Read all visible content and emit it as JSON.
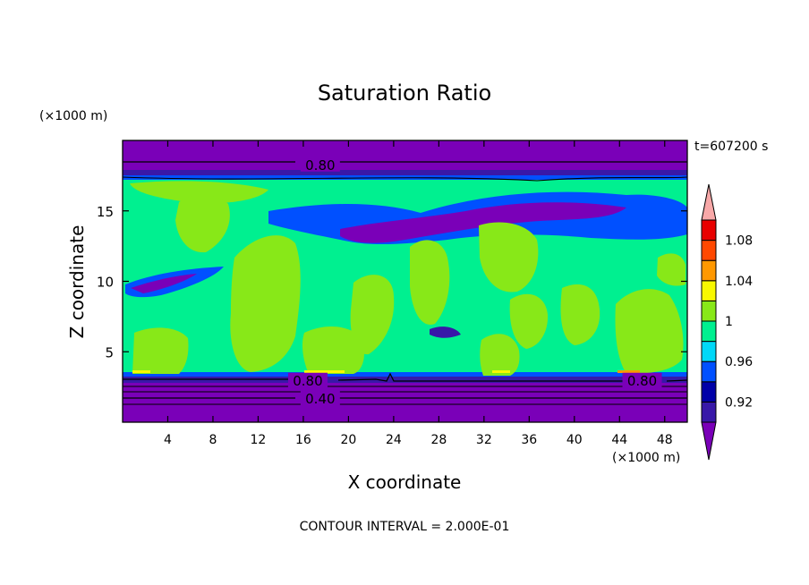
{
  "chart_data": {
    "type": "heatmap",
    "title": "Saturation Ratio",
    "xlabel": "X coordinate",
    "ylabel": "Z coordinate",
    "x_unit": "(×1000 m)",
    "y_unit": "(×1000 m)",
    "xlim": [
      0,
      50
    ],
    "ylim": [
      0,
      20
    ],
    "x_ticks": [
      4,
      8,
      12,
      16,
      20,
      24,
      28,
      32,
      36,
      40,
      44,
      48
    ],
    "y_ticks": [
      5,
      10,
      15
    ],
    "time_label": "t=607200 s",
    "footer": "CONTOUR INTERVAL = 2.000E-01",
    "colorbar": {
      "labels": [
        {
          "value": 1.08,
          "text": "1.08"
        },
        {
          "value": 1.04,
          "text": "1.04"
        },
        {
          "value": 1.0,
          "text": "1"
        },
        {
          "value": 0.96,
          "text": "0.96"
        },
        {
          "value": 0.92,
          "text": "0.92"
        }
      ],
      "levels": [
        {
          "label": "< 0.90",
          "color": "#7a00b8"
        },
        {
          "label": "0.90-0.92",
          "color": "#3818a8"
        },
        {
          "label": "0.92-0.94",
          "color": "#0000a8"
        },
        {
          "label": "0.94-0.96",
          "color": "#0050ff"
        },
        {
          "label": "0.96-0.98",
          "color": "#00d8f8"
        },
        {
          "label": "0.98-1.00",
          "color": "#00f090"
        },
        {
          "label": "1.00-1.02",
          "color": "#88e818"
        },
        {
          "label": "1.02-1.04",
          "color": "#f8f800"
        },
        {
          "label": "1.04-1.06",
          "color": "#ff9800"
        },
        {
          "label": "1.06-1.08",
          "color": "#ff4800"
        },
        {
          "label": "1.08-1.10",
          "color": "#e80000"
        },
        {
          "label": "> 1.10",
          "color": "#f8a8a8"
        }
      ]
    },
    "contour_labels": [
      {
        "text": "0.80",
        "x": 17.5,
        "z": 18.3
      },
      {
        "text": "0.80",
        "x": 16.4,
        "z": 3.0
      },
      {
        "text": "0.80",
        "x": 46.0,
        "z": 3.0
      },
      {
        "text": "0.40",
        "x": 17.5,
        "z": 1.7
      }
    ]
  }
}
